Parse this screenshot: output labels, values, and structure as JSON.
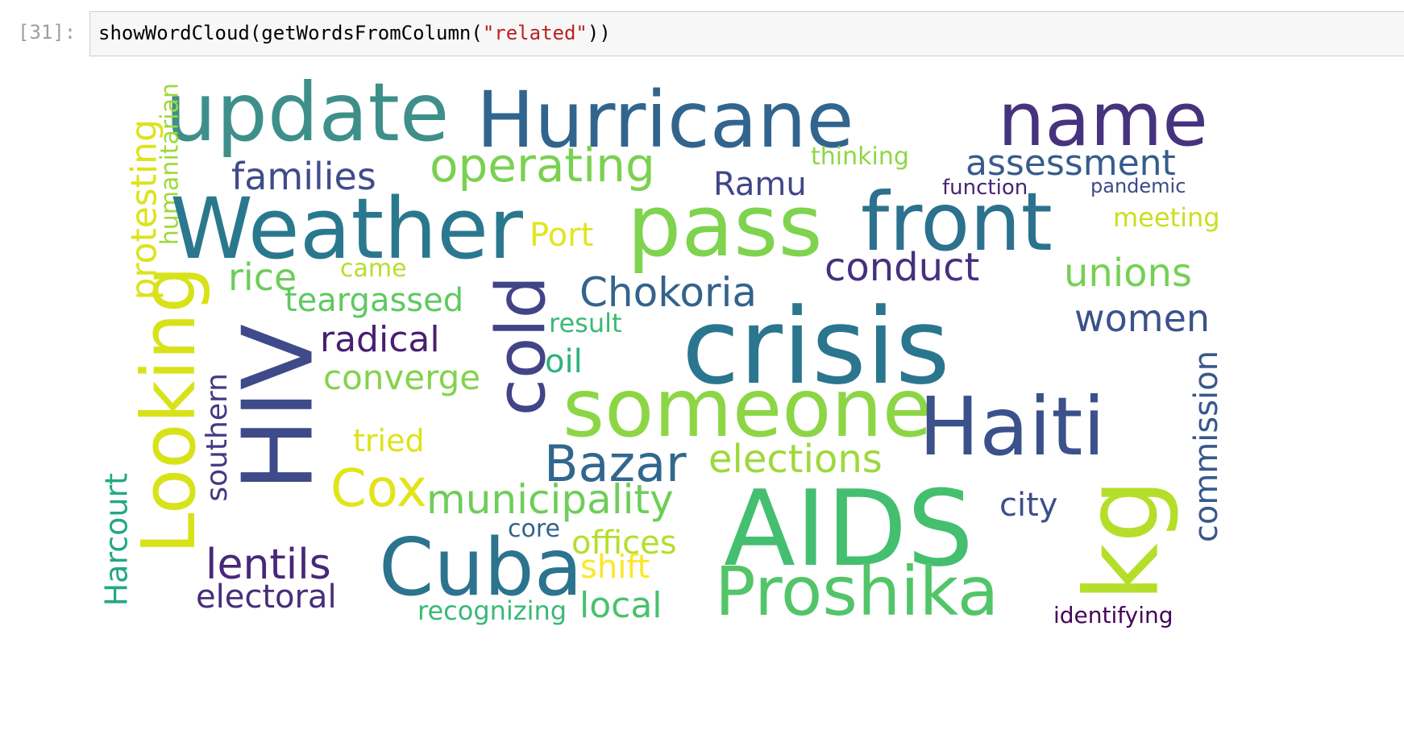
{
  "cell": {
    "prompt": "[31]:",
    "code_fn_open": "showWordCloud(getWordsFromColumn(",
    "code_string": "\"related\"",
    "code_close": "))"
  },
  "wordcloud": {
    "words": [
      {
        "text": "update",
        "color": "#3e8f8a"
      },
      {
        "text": "Hurricane",
        "color": "#32658e"
      },
      {
        "text": "name",
        "color": "#46337e"
      },
      {
        "text": "families",
        "color": "#3f4c8a"
      },
      {
        "text": "operating",
        "color": "#7ad151"
      },
      {
        "text": "thinking",
        "color": "#8fd744"
      },
      {
        "text": "assessment",
        "color": "#365c8d"
      },
      {
        "text": "Ramu",
        "color": "#404688"
      },
      {
        "text": "function",
        "color": "#482475"
      },
      {
        "text": "pandemic",
        "color": "#3e4989"
      },
      {
        "text": "humanitarian",
        "color": "#9fd938"
      },
      {
        "text": "protesting",
        "color": "#dde318"
      },
      {
        "text": "Weather",
        "color": "#2a788e"
      },
      {
        "text": "pass",
        "color": "#7fd34e"
      },
      {
        "text": "front",
        "color": "#2c718e"
      },
      {
        "text": "meeting",
        "color": "#c8e020"
      },
      {
        "text": "Port",
        "color": "#e3e51f"
      },
      {
        "text": "rice",
        "color": "#6ccd5a"
      },
      {
        "text": "came",
        "color": "#b8de29"
      },
      {
        "text": "conduct",
        "color": "#46307e"
      },
      {
        "text": "unions",
        "color": "#75d054"
      },
      {
        "text": "Chokoria",
        "color": "#33638d"
      },
      {
        "text": "teargassed",
        "color": "#5ec962"
      },
      {
        "text": "result",
        "color": "#3aba76"
      },
      {
        "text": "crisis",
        "color": "#2a768e"
      },
      {
        "text": "women",
        "color": "#3b528b"
      },
      {
        "text": "Looking",
        "color": "#d8e219"
      },
      {
        "text": "HIV",
        "color": "#3e4a89"
      },
      {
        "text": "radical",
        "color": "#481f70"
      },
      {
        "text": "cold",
        "color": "#414487"
      },
      {
        "text": "oil",
        "color": "#2db27d"
      },
      {
        "text": "converge",
        "color": "#83d34b"
      },
      {
        "text": "someone",
        "color": "#8cd645"
      },
      {
        "text": "Haiti",
        "color": "#3b518b"
      },
      {
        "text": "commission",
        "color": "#38588c"
      },
      {
        "text": "southern",
        "color": "#443983"
      },
      {
        "text": "tried",
        "color": "#dde318"
      },
      {
        "text": "Bazar",
        "color": "#31678e"
      },
      {
        "text": "elections",
        "color": "#9dd93b"
      },
      {
        "text": "Harcourt",
        "color": "#22a884"
      },
      {
        "text": "Cox",
        "color": "#e2e418"
      },
      {
        "text": "municipality",
        "color": "#6ece58"
      },
      {
        "text": "AIDS",
        "color": "#44bf70"
      },
      {
        "text": "city",
        "color": "#3c4f8a"
      },
      {
        "text": "kg",
        "color": "#b5de2b"
      },
      {
        "text": "core",
        "color": "#33638d"
      },
      {
        "text": "offices",
        "color": "#b5de2b"
      },
      {
        "text": "lentils",
        "color": "#482878"
      },
      {
        "text": "Cuba",
        "color": "#2c738e"
      },
      {
        "text": "shift",
        "color": "#fde725"
      },
      {
        "text": "Proshika",
        "color": "#52c569"
      },
      {
        "text": "electoral",
        "color": "#472d7b"
      },
      {
        "text": "recognizing",
        "color": "#38b977"
      },
      {
        "text": "local",
        "color": "#4ac16d"
      },
      {
        "text": "identifying",
        "color": "#450457"
      }
    ]
  }
}
